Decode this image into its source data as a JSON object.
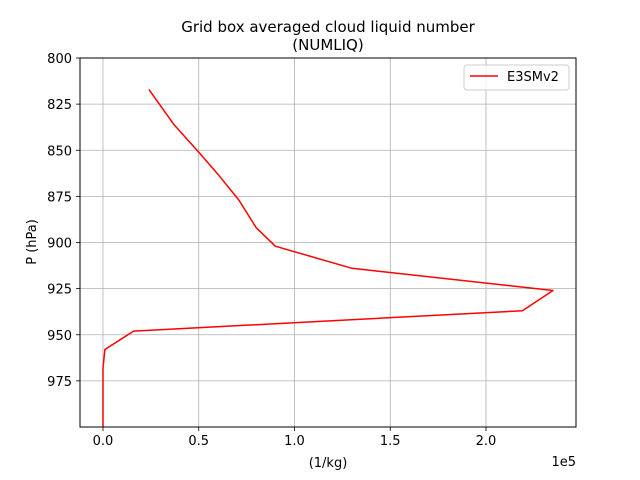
{
  "chart_data": {
    "type": "line",
    "title": "Grid box averaged cloud liquid number",
    "subtitle": "(NUMLIQ)",
    "xlabel": "(1/kg)",
    "ylabel": "P (hPa)",
    "x_offset_label": "1e5",
    "xlim": [
      -0.12,
      2.47
    ],
    "ylim": [
      1000,
      800
    ],
    "y_inverted": true,
    "xticks": [
      0.0,
      0.5,
      1.0,
      1.5,
      2.0
    ],
    "xtick_labels": [
      "0.0",
      "0.5",
      "1.0",
      "1.5",
      "2.0"
    ],
    "yticks": [
      800,
      825,
      850,
      875,
      900,
      925,
      950,
      975
    ],
    "ytick_labels": [
      "800",
      "825",
      "850",
      "875",
      "900",
      "925",
      "950",
      "975"
    ],
    "grid": true,
    "legend_position": "top-right",
    "series": [
      {
        "name": "E3SMv2",
        "color": "#ff0000",
        "points": [
          [
            0.24,
            817
          ],
          [
            0.37,
            836
          ],
          [
            0.5,
            851
          ],
          [
            0.6,
            863
          ],
          [
            0.71,
            877
          ],
          [
            0.8,
            892
          ],
          [
            0.9,
            902
          ],
          [
            1.3,
            914
          ],
          [
            2.35,
            926
          ],
          [
            2.19,
            937
          ],
          [
            0.16,
            948
          ],
          [
            0.01,
            958
          ],
          [
            0.0,
            968
          ],
          [
            0.0,
            1000
          ]
        ]
      }
    ]
  }
}
